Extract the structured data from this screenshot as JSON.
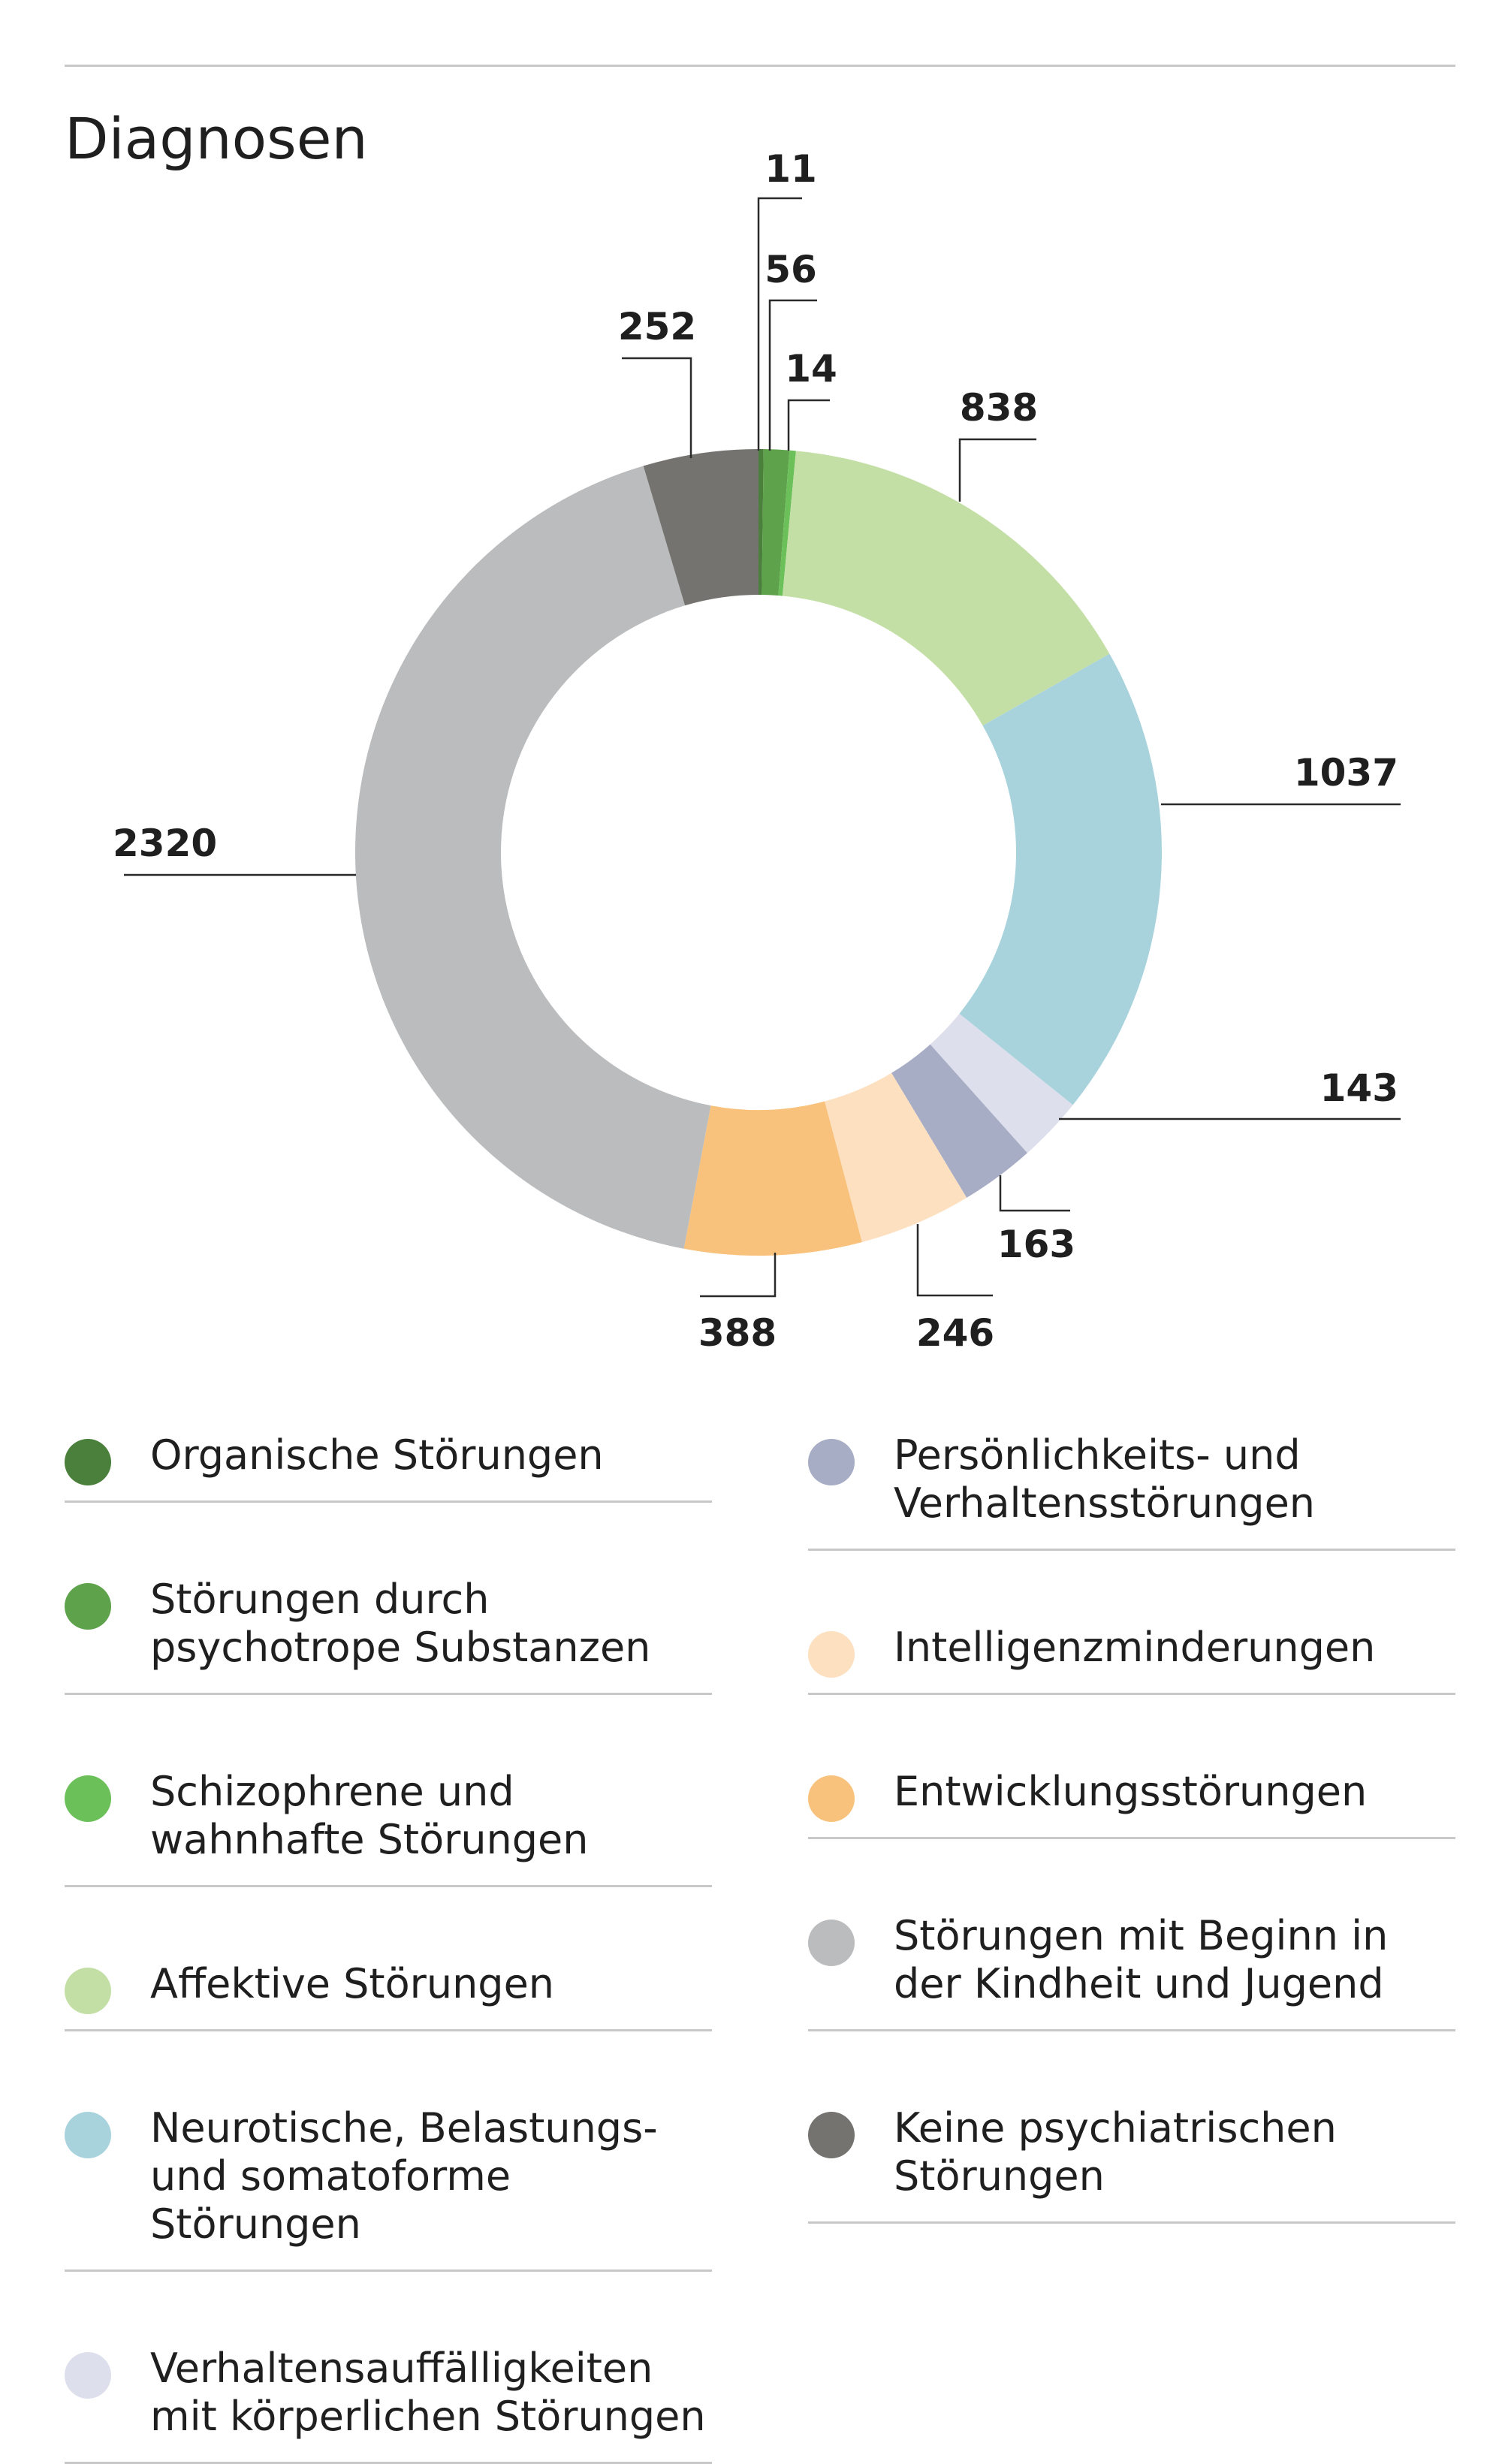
{
  "page": {
    "title": "Diagnosen"
  },
  "chart_data": {
    "type": "pie",
    "donut": true,
    "title": "Diagnosen",
    "start": "top",
    "direction": "clockwise",
    "categories": [
      "Organische Störungen",
      "Störungen durch psychotrope Substanzen",
      "Schizophrene und wahnhafte Störungen",
      "Affektive Störungen",
      "Neurotische, Belastungs- und somatoforme Störungen",
      "Verhaltensauffälligkeiten mit körperlichen Störungen",
      "Persönlichkeits- und Verhaltensstörungen",
      "Intelligenzminderungen",
      "Entwicklungsstörungen",
      "Störungen mit Beginn in der Kindheit und Jugend",
      "Keine psychiatrischen Störungen"
    ],
    "values": [
      11,
      56,
      14,
      838,
      1037,
      143,
      163,
      246,
      388,
      2320,
      252
    ],
    "value_labels": [
      "11",
      "56",
      "14",
      "838",
      "1037",
      "143",
      "163",
      "246",
      "388",
      "2320",
      "252"
    ],
    "colors": [
      "#4a7f3c",
      "#5ea24b",
      "#6cc05a",
      "#c3dfa6",
      "#a8d3dd",
      "#dde0ec",
      "#a8adc6",
      "#fde0c0",
      "#f9c27c",
      "#bbbcbd",
      "#74736f"
    ]
  },
  "legend": {
    "left": [
      {
        "label": "Organische Störungen",
        "color": "#4a7f3c"
      },
      {
        "label": "Störungen durch\npsychotrope Substanzen",
        "color": "#5ea24b"
      },
      {
        "label": "Schizophrene und\nwahnhafte Störungen",
        "color": "#6cc05a"
      },
      {
        "label": "Affektive Störungen",
        "color": "#c3dfa6"
      },
      {
        "label": "Neurotische, Belastungs-\nund somatoforme\nStörungen",
        "color": "#a8d3dd"
      },
      {
        "label": "Verhaltensauffälligkeiten\nmit körperlichen Störungen",
        "color": "#dde0ec"
      }
    ],
    "right": [
      {
        "label": "Persönlichkeits- und\nVerhaltensstörungen",
        "color": "#a8adc6"
      },
      {
        "label": "Intelligenzminderungen",
        "color": "#fde0c0"
      },
      {
        "label": "Entwicklungsstörungen",
        "color": "#f9c27c"
      },
      {
        "label": "Störungen mit Beginn in\nder Kindheit und Jugend",
        "color": "#bbbcbd"
      },
      {
        "label": "Keine psychiatrischen\nStörungen",
        "color": "#74736f"
      }
    ]
  }
}
